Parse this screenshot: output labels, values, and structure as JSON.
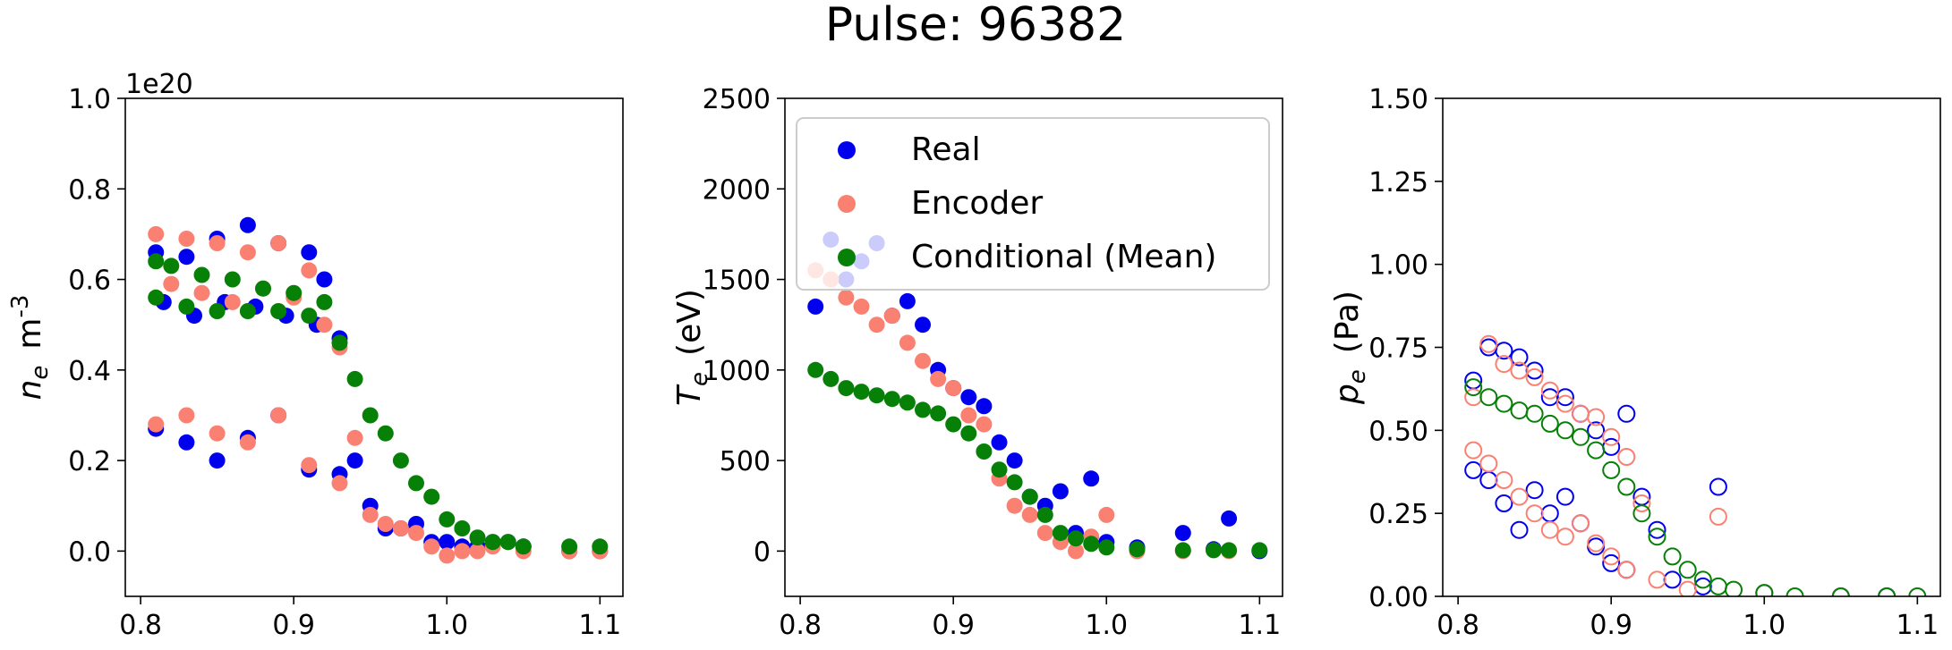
{
  "figure": {
    "suptitle": "Pulse: 96382"
  },
  "colors": {
    "real": "#0000ee",
    "encoder": "#fa8072",
    "conditional": "#078007"
  },
  "legend": {
    "entries": [
      {
        "label": "Real",
        "color": "#0000ee"
      },
      {
        "label": "Encoder",
        "color": "#fa8072"
      },
      {
        "label": "Conditional (Mean)",
        "color": "#078007"
      }
    ],
    "placement": "upper right of middle panel"
  },
  "chart_data": [
    {
      "type": "scatter",
      "ylabel": "n_e m^-3",
      "offset_text": "1e20",
      "xlim": [
        0.79,
        1.115
      ],
      "ylim": [
        -0.1,
        1.0
      ],
      "xticks": [
        "0.8",
        "0.9",
        "1.0",
        "1.1"
      ],
      "yticks": [
        "0.0",
        "0.2",
        "0.4",
        "0.6",
        "0.8",
        "1.0"
      ],
      "marker": "filled",
      "series": [
        {
          "name": "Real",
          "x": [
            0.81,
            0.83,
            0.85,
            0.87,
            0.89,
            0.91,
            0.92,
            0.815,
            0.835,
            0.855,
            0.875,
            0.895,
            0.915,
            0.93,
            0.81,
            0.83,
            0.85,
            0.87,
            0.89,
            0.91,
            0.93,
            0.95,
            0.97,
            0.99,
            1.01,
            1.03,
            1.05,
            1.08,
            0.94,
            0.96,
            0.98,
            1.0,
            1.02,
            1.04,
            1.1
          ],
          "y": [
            0.66,
            0.65,
            0.69,
            0.72,
            0.68,
            0.66,
            0.6,
            0.55,
            0.52,
            0.55,
            0.54,
            0.52,
            0.5,
            0.47,
            0.27,
            0.24,
            0.2,
            0.25,
            0.3,
            0.18,
            0.17,
            0.1,
            0.05,
            0.02,
            0.01,
            0.02,
            0.01,
            0.0,
            0.2,
            0.05,
            0.06,
            0.02,
            0.01,
            0.02,
            0.0
          ]
        },
        {
          "name": "Encoder",
          "x": [
            0.81,
            0.83,
            0.85,
            0.87,
            0.89,
            0.91,
            0.92,
            0.82,
            0.84,
            0.86,
            0.88,
            0.9,
            0.93,
            0.81,
            0.83,
            0.85,
            0.87,
            0.89,
            0.91,
            0.93,
            0.95,
            0.97,
            0.99,
            1.01,
            1.03,
            1.05,
            1.08,
            0.94,
            0.96,
            0.98,
            1.0,
            1.02,
            1.1
          ],
          "y": [
            0.7,
            0.69,
            0.68,
            0.66,
            0.68,
            0.62,
            0.5,
            0.59,
            0.57,
            0.55,
            0.58,
            0.56,
            0.45,
            0.28,
            0.3,
            0.26,
            0.24,
            0.3,
            0.19,
            0.15,
            0.08,
            0.05,
            0.01,
            0.0,
            0.01,
            0.0,
            0.0,
            0.25,
            0.06,
            0.04,
            -0.01,
            0.0,
            0.0
          ]
        },
        {
          "name": "Conditional (Mean)",
          "x": [
            0.81,
            0.82,
            0.84,
            0.86,
            0.88,
            0.9,
            0.92,
            0.81,
            0.83,
            0.85,
            0.87,
            0.89,
            0.91,
            0.93,
            0.94,
            0.95,
            0.96,
            0.97,
            0.98,
            0.99,
            1.0,
            1.01,
            1.02,
            1.03,
            1.04,
            1.05,
            1.08,
            1.1
          ],
          "y": [
            0.64,
            0.63,
            0.61,
            0.6,
            0.58,
            0.57,
            0.55,
            0.56,
            0.54,
            0.53,
            0.53,
            0.53,
            0.52,
            0.46,
            0.38,
            0.3,
            0.26,
            0.2,
            0.15,
            0.12,
            0.07,
            0.05,
            0.03,
            0.02,
            0.02,
            0.01,
            0.01,
            0.01
          ]
        }
      ]
    },
    {
      "type": "scatter",
      "ylabel": "T_e (eV)",
      "xlim": [
        0.79,
        1.115
      ],
      "ylim": [
        -250,
        2500
      ],
      "xticks": [
        "0.8",
        "0.9",
        "1.0",
        "1.1"
      ],
      "yticks": [
        "0",
        "500",
        "1000",
        "1500",
        "2000",
        "2500"
      ],
      "marker": "filled",
      "series": [
        {
          "name": "Real",
          "x": [
            0.81,
            0.82,
            0.83,
            0.84,
            0.85,
            0.86,
            0.87,
            0.88,
            0.89,
            0.9,
            0.91,
            0.92,
            0.93,
            0.94,
            0.95,
            0.96,
            0.97,
            0.98,
            0.99,
            1.0,
            1.02,
            1.05,
            1.07,
            1.08,
            1.1
          ],
          "y": [
            1350,
            1720,
            1500,
            1600,
            1700,
            1300,
            1380,
            1250,
            1000,
            900,
            850,
            800,
            600,
            500,
            300,
            250,
            330,
            100,
            400,
            50,
            20,
            100,
            10,
            180,
            0
          ]
        },
        {
          "name": "Encoder",
          "x": [
            0.81,
            0.82,
            0.83,
            0.84,
            0.85,
            0.86,
            0.87,
            0.88,
            0.89,
            0.9,
            0.91,
            0.92,
            0.93,
            0.94,
            0.95,
            0.96,
            0.97,
            0.98,
            0.99,
            1.0,
            1.02,
            1.05,
            1.08
          ],
          "y": [
            1550,
            1500,
            1400,
            1350,
            1250,
            1300,
            1150,
            1050,
            950,
            900,
            750,
            700,
            400,
            250,
            200,
            100,
            50,
            0,
            80,
            200,
            0,
            0,
            0
          ]
        },
        {
          "name": "Conditional (Mean)",
          "x": [
            0.81,
            0.82,
            0.83,
            0.84,
            0.85,
            0.86,
            0.87,
            0.88,
            0.89,
            0.9,
            0.91,
            0.92,
            0.93,
            0.94,
            0.95,
            0.96,
            0.97,
            0.98,
            0.99,
            1.0,
            1.02,
            1.05,
            1.07,
            1.08,
            1.1
          ],
          "y": [
            1000,
            950,
            900,
            880,
            860,
            840,
            820,
            780,
            760,
            700,
            650,
            550,
            450,
            380,
            300,
            200,
            100,
            70,
            40,
            20,
            10,
            5,
            5,
            5,
            5
          ]
        }
      ]
    },
    {
      "type": "scatter",
      "ylabel": "p_e (Pa)",
      "xlim": [
        0.79,
        1.115
      ],
      "ylim": [
        0.0,
        1.5
      ],
      "xticks": [
        "0.8",
        "0.9",
        "1.0",
        "1.1"
      ],
      "yticks": [
        "0.00",
        "0.25",
        "0.50",
        "0.75",
        "1.00",
        "1.25",
        "1.50"
      ],
      "marker": "hollow",
      "series": [
        {
          "name": "Real",
          "x": [
            0.81,
            0.82,
            0.83,
            0.84,
            0.85,
            0.86,
            0.87,
            0.88,
            0.89,
            0.9,
            0.91,
            0.92,
            0.93,
            0.81,
            0.82,
            0.83,
            0.84,
            0.85,
            0.86,
            0.87,
            0.88,
            0.89,
            0.9,
            0.91,
            0.94,
            0.96,
            0.97,
            1.0,
            1.05,
            1.08
          ],
          "y": [
            0.65,
            0.75,
            0.74,
            0.72,
            0.68,
            0.6,
            0.6,
            0.55,
            0.5,
            0.45,
            0.55,
            0.3,
            0.2,
            0.38,
            0.35,
            0.28,
            0.2,
            0.32,
            0.25,
            0.3,
            0.22,
            0.15,
            0.1,
            0.08,
            0.05,
            0.03,
            0.33,
            0.01,
            0.0,
            0.0
          ]
        },
        {
          "name": "Encoder",
          "x": [
            0.81,
            0.82,
            0.83,
            0.84,
            0.85,
            0.86,
            0.87,
            0.88,
            0.89,
            0.9,
            0.91,
            0.92,
            0.81,
            0.82,
            0.83,
            0.84,
            0.85,
            0.86,
            0.87,
            0.88,
            0.89,
            0.9,
            0.91,
            0.93,
            0.95,
            0.97,
            1.0,
            1.05
          ],
          "y": [
            0.6,
            0.76,
            0.7,
            0.68,
            0.66,
            0.62,
            0.58,
            0.55,
            0.54,
            0.48,
            0.42,
            0.28,
            0.44,
            0.4,
            0.35,
            0.3,
            0.25,
            0.2,
            0.18,
            0.22,
            0.16,
            0.12,
            0.08,
            0.05,
            0.02,
            0.24,
            0.01,
            0.0
          ]
        },
        {
          "name": "Conditional (Mean)",
          "x": [
            0.81,
            0.82,
            0.83,
            0.84,
            0.85,
            0.86,
            0.87,
            0.88,
            0.89,
            0.9,
            0.91,
            0.92,
            0.93,
            0.94,
            0.95,
            0.96,
            0.97,
            0.98,
            1.0,
            1.02,
            1.05,
            1.08,
            1.1
          ],
          "y": [
            0.63,
            0.6,
            0.58,
            0.56,
            0.55,
            0.52,
            0.5,
            0.48,
            0.44,
            0.38,
            0.33,
            0.25,
            0.18,
            0.12,
            0.08,
            0.05,
            0.03,
            0.02,
            0.01,
            0.0,
            0.0,
            0.0,
            0.0
          ]
        }
      ]
    }
  ]
}
